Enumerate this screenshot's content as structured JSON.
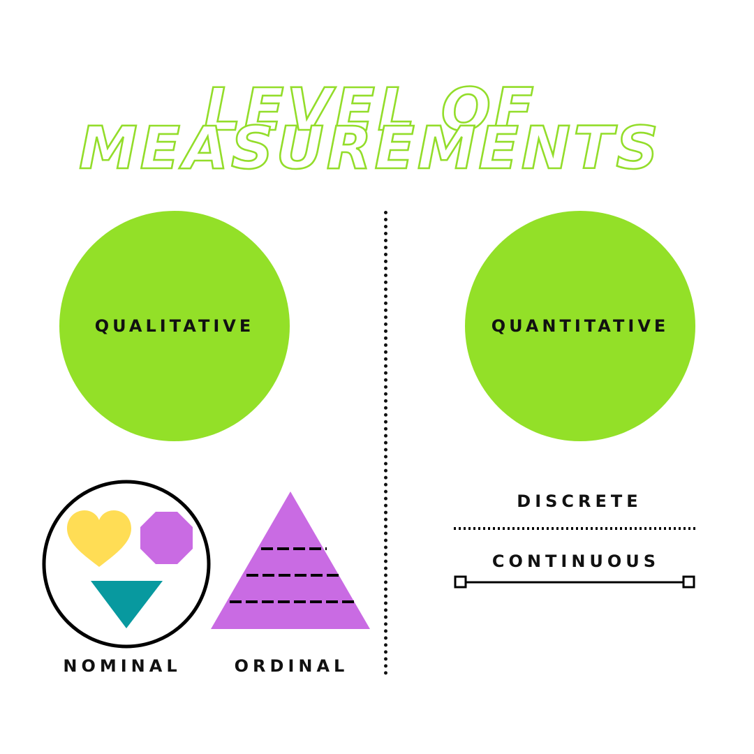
{
  "title": {
    "line1": "LEVEL OF",
    "line2": "MEASUREMENTS"
  },
  "left": {
    "circle_label": "QUALITATIVE",
    "nominal_label": "NOMINAL",
    "ordinal_label": "ORDINAL"
  },
  "right": {
    "circle_label": "QUANTITATIVE",
    "discrete_label": "DISCRETE",
    "continuous_label": "CONTINUOUS"
  },
  "colors": {
    "accent_green": "#93e028",
    "outline_green": "#93dd2a",
    "heart_yellow": "#ffdd55",
    "octagon_purple": "#c96be3",
    "triangle_teal": "#08999f",
    "pyramid_purple": "#c96be3"
  },
  "icons": [
    "heart-icon",
    "octagon-icon",
    "triangle-down-icon",
    "pyramid-icon",
    "dotted-line-icon",
    "segment-line-icon"
  ]
}
